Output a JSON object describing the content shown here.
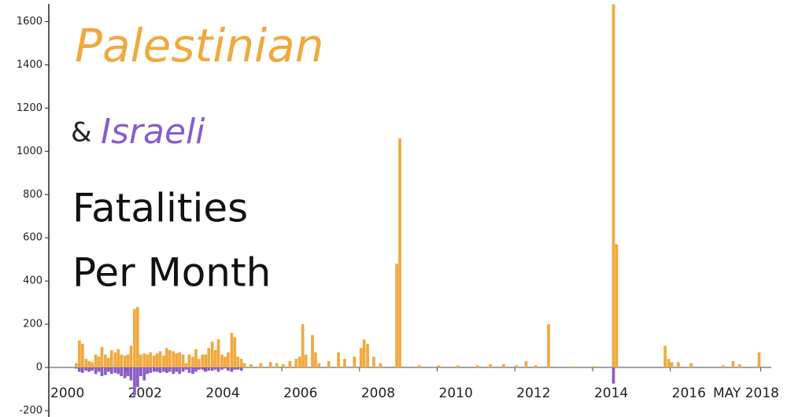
{
  "chart_data": {
    "type": "bar",
    "title_parts": [
      "Palestinian",
      "&",
      "Israeli",
      "Fatalities",
      "Per Month"
    ],
    "xlim": [
      2000,
      2018.6
    ],
    "xticks": [
      {
        "value": 2000,
        "label": "2000"
      },
      {
        "value": 2002,
        "label": "2002"
      },
      {
        "value": 2004,
        "label": "2004"
      },
      {
        "value": 2006,
        "label": "2006"
      },
      {
        "value": 2008,
        "label": "2008"
      },
      {
        "value": 2010,
        "label": "2010"
      },
      {
        "value": 2012,
        "label": "2012"
      },
      {
        "value": 2014,
        "label": "2014"
      },
      {
        "value": 2016,
        "label": "2016"
      },
      {
        "value": 2018.33,
        "label": "MAY 2018"
      }
    ],
    "ylim": [
      -200,
      1700
    ],
    "yticks": [
      -200,
      0,
      200,
      400,
      600,
      800,
      1000,
      1200,
      1400,
      1600
    ],
    "bar_width": 0.0833,
    "series": [
      {
        "name": "Palestinian",
        "color": "#f0a93e",
        "x": [
          2000.67,
          2000.75,
          2000.83,
          2000.92,
          2001.0,
          2001.08,
          2001.17,
          2001.25,
          2001.33,
          2001.42,
          2001.5,
          2001.58,
          2001.67,
          2001.75,
          2001.83,
          2001.92,
          2002.0,
          2002.08,
          2002.17,
          2002.25,
          2002.33,
          2002.42,
          2002.5,
          2002.58,
          2002.67,
          2002.75,
          2002.83,
          2002.92,
          2003.0,
          2003.08,
          2003.17,
          2003.25,
          2003.33,
          2003.42,
          2003.5,
          2003.58,
          2003.67,
          2003.75,
          2003.83,
          2003.92,
          2004.0,
          2004.08,
          2004.17,
          2004.25,
          2004.33,
          2004.42,
          2004.5,
          2004.58,
          2004.67,
          2004.75,
          2004.83,
          2004.92,
          2005.0,
          2005.17,
          2005.42,
          2005.67,
          2005.83,
          2006.0,
          2006.17,
          2006.33,
          2006.42,
          2006.5,
          2006.58,
          2006.75,
          2006.83,
          2006.92,
          2007.17,
          2007.42,
          2007.58,
          2007.83,
          2008.0,
          2008.08,
          2008.17,
          2008.33,
          2008.5,
          2008.92,
          2009.0,
          2009.5,
          2010.0,
          2010.5,
          2011.0,
          2011.33,
          2011.67,
          2012.0,
          2012.25,
          2012.5,
          2012.83,
          2013.5,
          2014.0,
          2014.5,
          2014.58,
          2015.83,
          2015.92,
          2016.0,
          2016.17,
          2016.5,
          2017.33,
          2017.58,
          2017.75,
          2018.25
        ],
        "values": [
          20,
          125,
          110,
          40,
          30,
          25,
          60,
          50,
          95,
          60,
          45,
          80,
          70,
          85,
          60,
          55,
          60,
          100,
          270,
          280,
          60,
          65,
          60,
          70,
          55,
          65,
          75,
          55,
          90,
          80,
          75,
          65,
          70,
          60,
          20,
          60,
          50,
          85,
          40,
          60,
          60,
          90,
          120,
          80,
          130,
          60,
          50,
          70,
          160,
          140,
          50,
          40,
          20,
          15,
          20,
          25,
          20,
          15,
          30,
          40,
          50,
          200,
          60,
          150,
          70,
          20,
          30,
          70,
          40,
          50,
          90,
          130,
          110,
          50,
          20,
          480,
          1060,
          10,
          10,
          10,
          10,
          15,
          15,
          10,
          30,
          10,
          200,
          5,
          5,
          1680,
          570,
          100,
          40,
          25,
          25,
          20,
          10,
          30,
          15,
          70
        ]
      },
      {
        "name": "Israeli",
        "color": "#8a5cc8",
        "x": [
          2000.67,
          2000.75,
          2000.83,
          2000.92,
          2001.0,
          2001.08,
          2001.17,
          2001.25,
          2001.33,
          2001.42,
          2001.5,
          2001.58,
          2001.67,
          2001.75,
          2001.83,
          2001.92,
          2002.0,
          2002.08,
          2002.17,
          2002.25,
          2002.33,
          2002.42,
          2002.5,
          2002.58,
          2002.67,
          2002.75,
          2002.83,
          2002.92,
          2003.0,
          2003.08,
          2003.17,
          2003.25,
          2003.33,
          2003.42,
          2003.5,
          2003.58,
          2003.67,
          2003.75,
          2003.83,
          2003.92,
          2004.0,
          2004.08,
          2004.17,
          2004.25,
          2004.33,
          2004.42,
          2004.5,
          2004.58,
          2004.67,
          2004.75,
          2004.83,
          2004.92,
          2014.5
        ],
        "values": [
          -5,
          -20,
          -25,
          -15,
          -20,
          -15,
          -30,
          -20,
          -40,
          -35,
          -20,
          -30,
          -25,
          -30,
          -40,
          -50,
          -40,
          -60,
          -130,
          -90,
          -40,
          -60,
          -30,
          -25,
          -20,
          -20,
          -25,
          -20,
          -25,
          -20,
          -30,
          -20,
          -30,
          -20,
          -10,
          -25,
          -30,
          -20,
          -10,
          -10,
          -20,
          -15,
          -15,
          -10,
          -20,
          -10,
          -5,
          -15,
          -20,
          -10,
          -10,
          -15,
          -75
        ]
      }
    ]
  }
}
